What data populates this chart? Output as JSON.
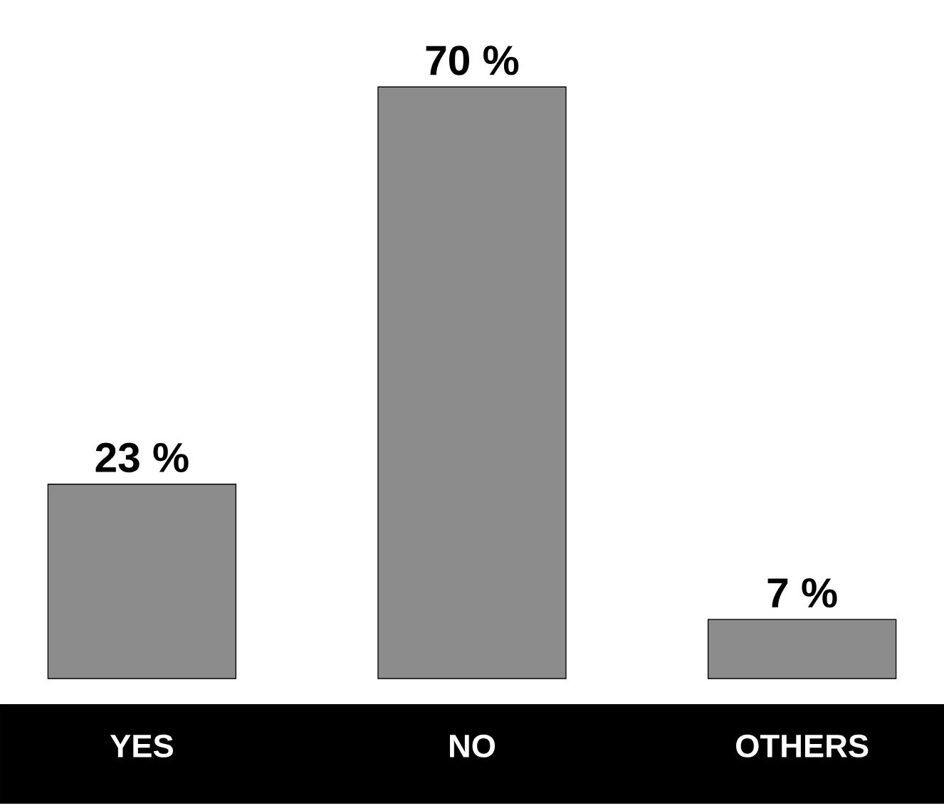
{
  "chart_data": {
    "type": "bar",
    "categories": [
      "YES",
      "NO",
      "OTHERS"
    ],
    "values": [
      23,
      70,
      7
    ],
    "value_labels": [
      "23 %",
      "70 %",
      "7 %"
    ],
    "color": "#8c8c8c"
  }
}
